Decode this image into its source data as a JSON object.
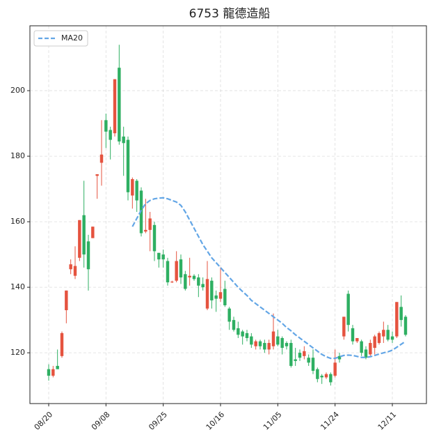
{
  "chart_data": {
    "type": "candlestick",
    "title": "6753 龍德造船",
    "categories": [
      "08/20",
      null,
      null,
      null,
      null,
      null,
      null,
      null,
      null,
      null,
      null,
      null,
      null,
      "09/08",
      null,
      null,
      null,
      null,
      null,
      null,
      null,
      null,
      null,
      null,
      null,
      null,
      "09/25",
      null,
      null,
      null,
      null,
      null,
      null,
      null,
      null,
      null,
      null,
      null,
      null,
      "10/16",
      null,
      null,
      null,
      null,
      null,
      null,
      null,
      null,
      null,
      null,
      null,
      null,
      "11/05",
      null,
      null,
      null,
      null,
      null,
      null,
      null,
      null,
      null,
      null,
      null,
      null,
      "11/24",
      null,
      null,
      null,
      null,
      null,
      null,
      null,
      null,
      null,
      null,
      null,
      null,
      "12/11",
      null,
      null,
      null
    ],
    "open": [
      115,
      113,
      116,
      119,
      133,
      145.5,
      143.5,
      149,
      162,
      154,
      155,
      174,
      178,
      191,
      188,
      187,
      207,
      186,
      185,
      168,
      172.5,
      169.5,
      157,
      157.5,
      159,
      150.5,
      150,
      148,
      141.5,
      142,
      148.5,
      144,
      143,
      143.5,
      143,
      141,
      133.5,
      142,
      137.5,
      136.5,
      139.5,
      133.5,
      130,
      127.5,
      126.5,
      126,
      125,
      122,
      123.5,
      123,
      121,
      122,
      125,
      124.5,
      123,
      123,
      118,
      120,
      119,
      118.5,
      118.5,
      115,
      113,
      112.5,
      113.5,
      113,
      119,
      125,
      138,
      127.5,
      123.5,
      123.5,
      121,
      119.5,
      121.5,
      123,
      125,
      127,
      125,
      125,
      134,
      131
    ],
    "high": [
      116.5,
      116,
      121,
      126.5,
      139,
      148.5,
      152.5,
      160.5,
      172.5,
      156,
      158.5,
      174.5,
      191,
      193,
      189,
      203.5,
      214,
      189,
      186,
      173.5,
      173,
      170.5,
      167,
      163,
      160,
      150.5,
      151.5,
      149,
      142,
      151,
      150,
      145,
      149,
      144,
      144,
      143,
      148,
      143,
      139,
      146,
      142,
      134,
      131,
      129.5,
      127,
      127,
      126,
      124,
      124,
      124,
      124,
      132,
      127,
      125,
      123.5,
      124,
      121.5,
      121,
      122,
      119.5,
      121,
      115.5,
      113.5,
      114,
      114,
      121,
      120,
      131,
      139,
      128.5,
      124.5,
      124,
      122,
      124,
      125.5,
      126.5,
      129.5,
      128.5,
      126.5,
      135.5,
      137.5,
      131.5
    ],
    "low": [
      111.5,
      112.5,
      115,
      118.5,
      129,
      144,
      142.5,
      148,
      146,
      139,
      155,
      167,
      171,
      182.5,
      179,
      186,
      183.5,
      174,
      166.5,
      164,
      163,
      155.5,
      156.5,
      151,
      148,
      146,
      146,
      140.5,
      141.3,
      141.5,
      141,
      139,
      140.5,
      142,
      137,
      139,
      133,
      133.5,
      132.5,
      135.5,
      134,
      127,
      126.5,
      124.5,
      122.5,
      123.5,
      121.5,
      121,
      121,
      120,
      119.5,
      121,
      122,
      119.5,
      121,
      115.5,
      116,
      117.5,
      118,
      116,
      113.5,
      111,
      110.5,
      112,
      110,
      112.5,
      117,
      124,
      126.5,
      122.5,
      123,
      119,
      118,
      119,
      119.5,
      122.5,
      123,
      123.5,
      123,
      124.5,
      128,
      125
    ],
    "close": [
      113,
      115,
      115,
      126,
      139,
      147,
      146.5,
      160.5,
      150,
      145.5,
      158.5,
      174.5,
      180.5,
      187.5,
      185,
      203.5,
      184.5,
      184,
      169,
      173,
      166.5,
      156.5,
      157.5,
      161,
      151,
      148.5,
      148.5,
      141.5,
      141.7,
      148,
      143,
      139.5,
      143.5,
      142.5,
      140.5,
      140,
      142.5,
      136,
      136.5,
      138.5,
      134.5,
      129.5,
      127,
      125.5,
      125,
      124.5,
      122.5,
      123.5,
      122,
      121,
      123,
      126.5,
      122.5,
      121.5,
      122,
      116,
      117.5,
      118.5,
      120.5,
      117,
      114.5,
      112,
      112.5,
      113.5,
      111,
      117,
      118,
      131,
      128.5,
      123.5,
      124.5,
      120,
      118.5,
      123,
      125,
      126,
      127,
      124,
      124,
      135.5,
      130,
      125.5
    ],
    "up_color": "#e5533f",
    "down_color": "#2eaf62",
    "overlays": [
      {
        "name": "MA20",
        "color": "#63a6e6",
        "values": [
          null,
          null,
          null,
          null,
          null,
          null,
          null,
          null,
          null,
          null,
          null,
          null,
          null,
          null,
          null,
          null,
          null,
          null,
          null,
          158.5,
          161,
          163.5,
          165.5,
          166.5,
          167,
          167.2,
          167.3,
          167,
          166.5,
          166,
          165,
          163,
          160.5,
          158,
          155.5,
          153,
          151,
          149,
          147.5,
          146,
          144.5,
          143,
          141.5,
          140,
          138.7,
          137.5,
          136,
          135,
          134,
          133,
          132,
          131,
          130,
          129,
          127.7,
          126.7,
          125.5,
          124.5,
          123.5,
          122.5,
          121.5,
          120.5,
          119.5,
          118.8,
          118.3,
          118.3,
          118.8,
          119.2,
          119.3,
          119.2,
          118.9,
          118.6,
          118.6,
          118.8,
          119.2,
          119.6,
          120,
          120.3,
          120.8,
          121.7,
          122.6,
          123.5
        ]
      }
    ],
    "ylim": [
      104.5,
      219.8
    ],
    "yticks": [
      120,
      140,
      160,
      180,
      200
    ],
    "grid": true,
    "legend": "upper left"
  }
}
